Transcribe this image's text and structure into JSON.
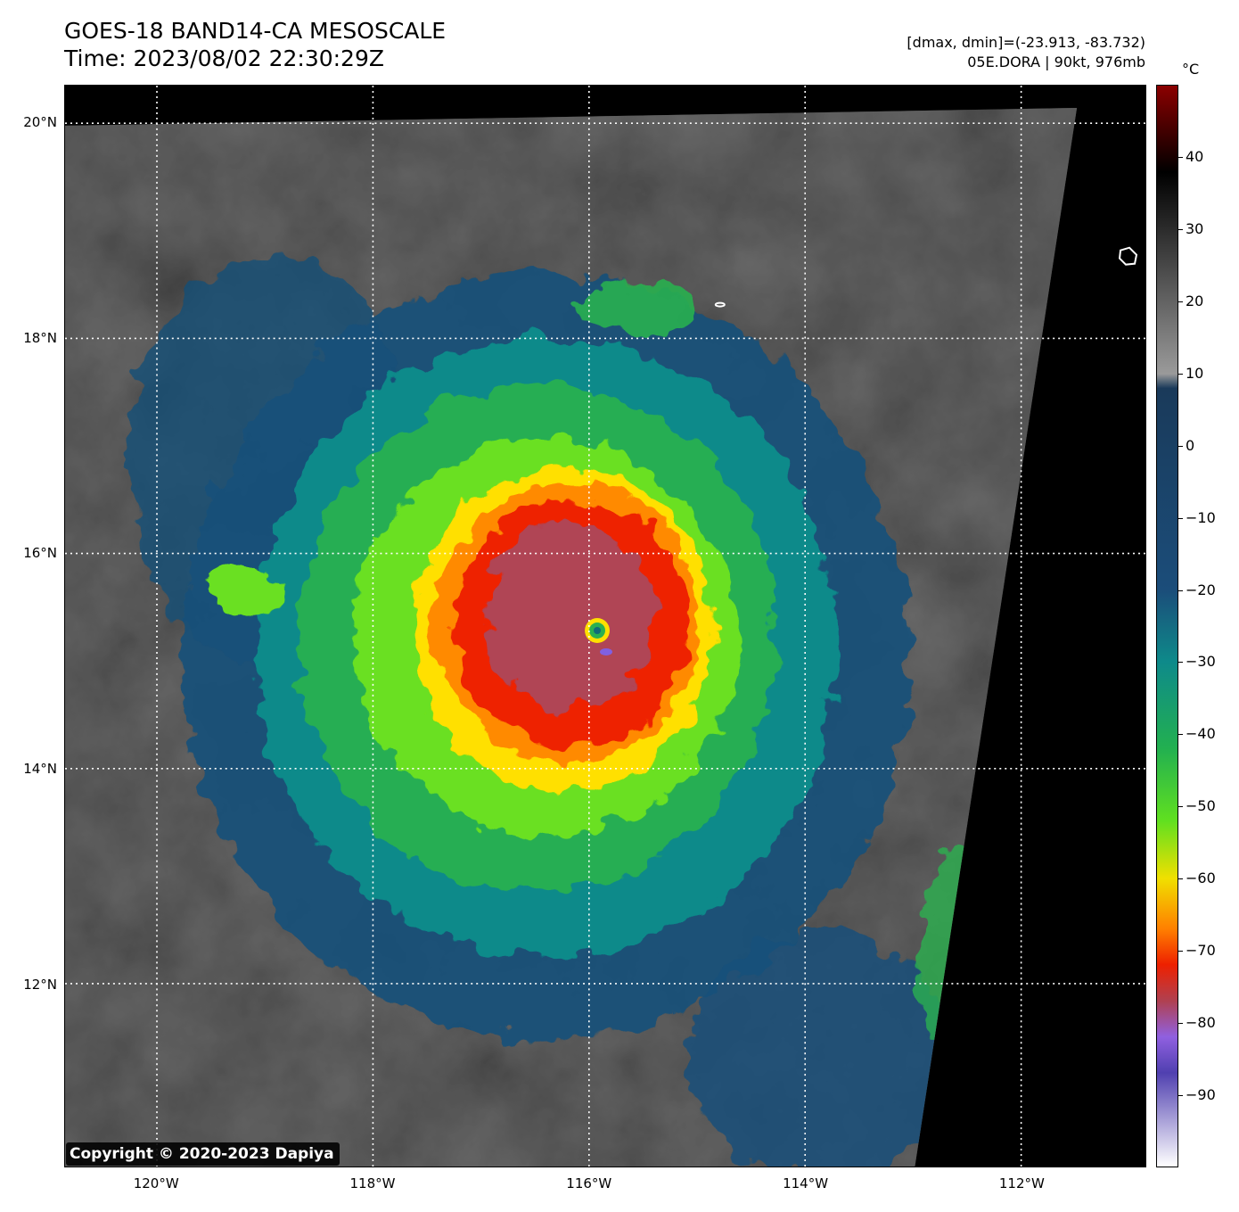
{
  "title": {
    "line1": "GOES-18 BAND14-CA MESOSCALE",
    "line2": "Time: 2023/08/02 22:30:29Z"
  },
  "info": {
    "line1": "[dmax, dmin]=(-23.913, -83.732)",
    "line2": "05E.DORA | 90kt, 976mb"
  },
  "map": {
    "lat_labels": [
      "20°N",
      "18°N",
      "16°N",
      "14°N",
      "12°N"
    ],
    "lon_labels": [
      "120°W",
      "118°W",
      "116°W",
      "114°W",
      "112°W"
    ],
    "lat_range": [
      10.3,
      20.35
    ],
    "lon_range": [
      -120.85,
      -110.85
    ],
    "grid": "dotted white",
    "storm_center": {
      "lat": 15.35,
      "lon": -115.9
    }
  },
  "colorbar": {
    "unit": "°C",
    "tick_labels": [
      "40",
      "30",
      "20",
      "10",
      "0",
      "−10",
      "−20",
      "−30",
      "−40",
      "−50",
      "−60",
      "−70",
      "−80",
      "−90"
    ],
    "tick_values": [
      40,
      30,
      20,
      10,
      0,
      -10,
      -20,
      -30,
      -40,
      -50,
      -60,
      -70,
      -80,
      -90
    ],
    "range": [
      -100,
      50
    ],
    "stops": [
      {
        "value": 50,
        "color": "#8b0000"
      },
      {
        "value": 38,
        "color": "#000000"
      },
      {
        "value": 10,
        "color": "#9a9a9a"
      },
      {
        "value": 8,
        "color": "#1a3a5a"
      },
      {
        "value": -20,
        "color": "#1b4d7a"
      },
      {
        "value": -30,
        "color": "#0e8a8a"
      },
      {
        "value": -42,
        "color": "#22b050"
      },
      {
        "value": -52,
        "color": "#60e020"
      },
      {
        "value": -60,
        "color": "#f0e000"
      },
      {
        "value": -67,
        "color": "#ff8000"
      },
      {
        "value": -72,
        "color": "#ee2000"
      },
      {
        "value": -77,
        "color": "#b04050"
      },
      {
        "value": -82,
        "color": "#9060e0"
      },
      {
        "value": -87,
        "color": "#5040b0"
      },
      {
        "value": -100,
        "color": "#ffffff"
      }
    ]
  },
  "copyright": "Copyright © 2020-2023 Dapiya"
}
